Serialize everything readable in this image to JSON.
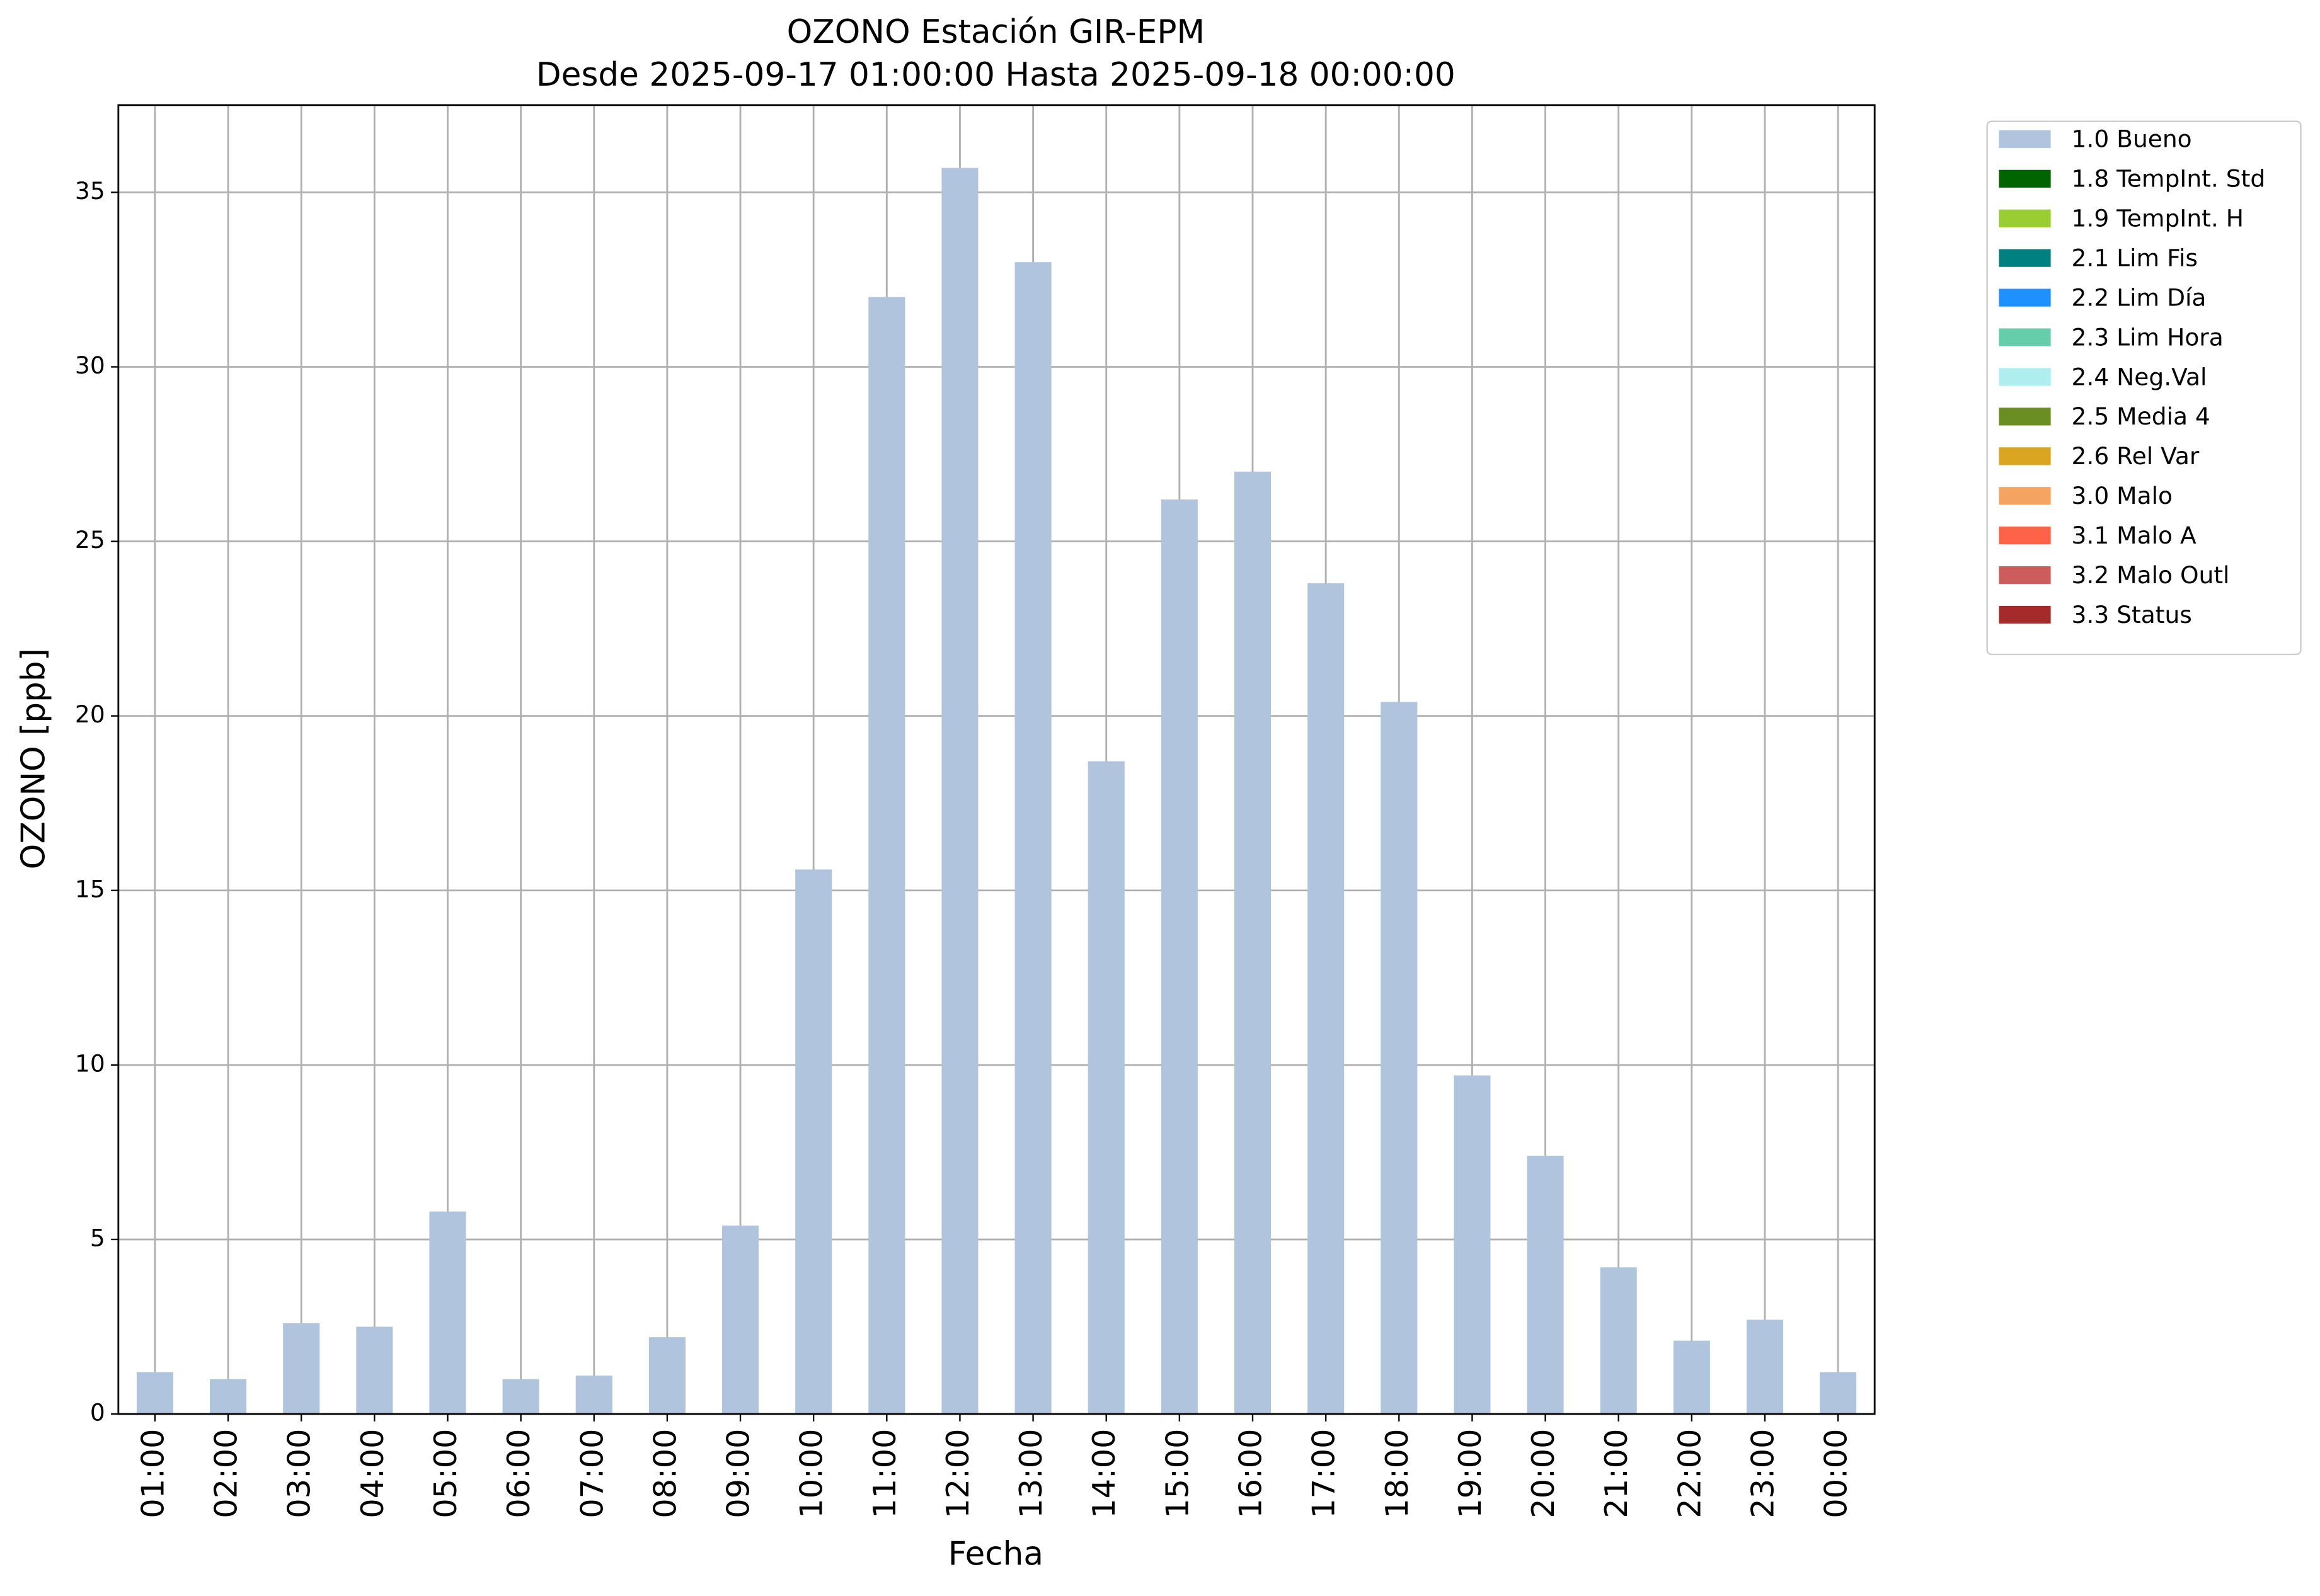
{
  "chart_data": {
    "type": "bar",
    "stacked": true,
    "title": "OZONO Estación GIR-EPM",
    "subtitle": "Desde 2025-09-17 01:00:00 Hasta 2025-09-18 00:00:00",
    "x_label": "Fecha",
    "y_label": "OZONO [ppb]",
    "categories": [
      "01:00",
      "02:00",
      "03:00",
      "04:00",
      "05:00",
      "06:00",
      "07:00",
      "08:00",
      "09:00",
      "10:00",
      "11:00",
      "12:00",
      "13:00",
      "14:00",
      "15:00",
      "16:00",
      "17:00",
      "18:00",
      "19:00",
      "20:00",
      "21:00",
      "22:00",
      "23:00",
      "00:00"
    ],
    "series": [
      {
        "name": "1.0 Bueno",
        "color": "#b0c4de",
        "values": [
          1.2,
          1.0,
          2.6,
          2.5,
          5.8,
          1.0,
          1.1,
          2.2,
          5.4,
          15.6,
          32.0,
          35.7,
          33.0,
          18.7,
          26.2,
          27.0,
          23.8,
          20.4,
          9.7,
          7.4,
          4.2,
          2.1,
          2.7,
          1.2
        ]
      },
      {
        "name": "1.8 TempInt. Std",
        "color": "#006400",
        "values": [
          0,
          0,
          0,
          0,
          0,
          0,
          0,
          0,
          0,
          0,
          0,
          0,
          0,
          0,
          0,
          0,
          0,
          0,
          0,
          0,
          0,
          0,
          0,
          0
        ]
      },
      {
        "name": "1.9 TempInt. H",
        "color": "#9acd32",
        "values": [
          0,
          0,
          0,
          0,
          0,
          0,
          0,
          0,
          0,
          0,
          0,
          0,
          0,
          0,
          0,
          0,
          0,
          0,
          0,
          0,
          0,
          0,
          0,
          0
        ]
      },
      {
        "name": "2.1 Lim Fis",
        "color": "#008080",
        "values": [
          0,
          0,
          0,
          0,
          0,
          0,
          0,
          0,
          0,
          0,
          0,
          0,
          0,
          0,
          0,
          0,
          0,
          0,
          0,
          0,
          0,
          0,
          0,
          0
        ]
      },
      {
        "name": "2.2 Lim Día",
        "color": "#1e90ff",
        "values": [
          0,
          0,
          0,
          0,
          0,
          0,
          0,
          0,
          0,
          0,
          0,
          0,
          0,
          0,
          0,
          0,
          0,
          0,
          0,
          0,
          0,
          0,
          0,
          0
        ]
      },
      {
        "name": "2.3 Lim Hora",
        "color": "#66cdaa",
        "values": [
          0,
          0,
          0,
          0,
          0,
          0,
          0,
          0,
          0,
          0,
          0,
          0,
          0,
          0,
          0,
          0,
          0,
          0,
          0,
          0,
          0,
          0,
          0,
          0
        ]
      },
      {
        "name": "2.4 Neg.Val",
        "color": "#afeeee",
        "values": [
          0,
          0,
          0,
          0,
          0,
          0,
          0,
          0,
          0,
          0,
          0,
          0,
          0,
          0,
          0,
          0,
          0,
          0,
          0,
          0,
          0,
          0,
          0,
          0
        ]
      },
      {
        "name": "2.5 Media 4",
        "color": "#6b8e23",
        "values": [
          0,
          0,
          0,
          0,
          0,
          0,
          0,
          0,
          0,
          0,
          0,
          0,
          0,
          0,
          0,
          0,
          0,
          0,
          0,
          0,
          0,
          0,
          0,
          0
        ]
      },
      {
        "name": "2.6 Rel Var",
        "color": "#daa520",
        "values": [
          0,
          0,
          0,
          0,
          0,
          0,
          0,
          0,
          0,
          0,
          0,
          0,
          0,
          0,
          0,
          0,
          0,
          0,
          0,
          0,
          0,
          0,
          0,
          0
        ]
      },
      {
        "name": "3.0 Malo",
        "color": "#f4a460",
        "values": [
          0,
          0,
          0,
          0,
          0,
          0,
          0,
          0,
          0,
          0,
          0,
          0,
          0,
          0,
          0,
          0,
          0,
          0,
          0,
          0,
          0,
          0,
          0,
          0
        ]
      },
      {
        "name": "3.1 Malo A",
        "color": "#ff6347",
        "values": [
          0,
          0,
          0,
          0,
          0,
          0,
          0,
          0,
          0,
          0,
          0,
          0,
          0,
          0,
          0,
          0,
          0,
          0,
          0,
          0,
          0,
          0,
          0,
          0
        ]
      },
      {
        "name": "3.2 Malo Outl",
        "color": "#cd5c5c",
        "values": [
          0,
          0,
          0,
          0,
          0,
          0,
          0,
          0,
          0,
          0,
          0,
          0,
          0,
          0,
          0,
          0,
          0,
          0,
          0,
          0,
          0,
          0,
          0,
          0
        ]
      },
      {
        "name": "3.3 Status",
        "color": "#a52a2a",
        "values": [
          0,
          0,
          0,
          0,
          0,
          0,
          0,
          0,
          0,
          0,
          0,
          0,
          0,
          0,
          0,
          0,
          0,
          0,
          0,
          0,
          0,
          0,
          0,
          0
        ]
      }
    ],
    "ylim": [
      0,
      37.5
    ],
    "yticks": [
      0,
      5,
      10,
      15,
      20,
      25,
      30,
      35
    ],
    "grid": true,
    "legend": "outside-right"
  }
}
